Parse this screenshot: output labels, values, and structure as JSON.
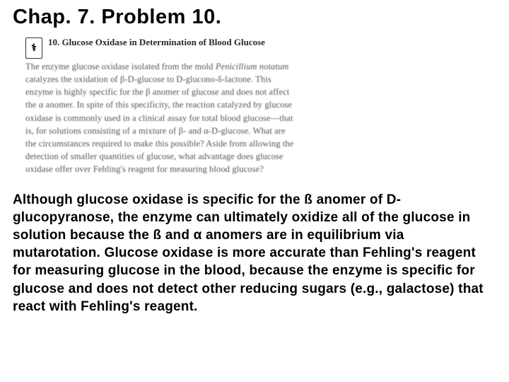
{
  "title": "Chap. 7. Problem 10.",
  "icon_glyph": "⚕",
  "problem": {
    "number_label": "10. Glucose Oxidase in Determination of Blood Glucose",
    "lead_in": "The enzyme glucose oxidase isolated from the mold ",
    "italic_species": "Penicillium notatum",
    "body_rest": " catalyzes the oxidation of β-D-glucose to D-glucono-δ-lactone. This enzyme is highly specific for the β anomer of glucose and does not affect the α anomer. In spite of this specificity, the reaction catalyzed by glucose oxidase is commonly used in a clinical assay for total blood glucose—that is, for solutions consisting of a mixture of β- and α-D-glucose. What are the circumstances required to make this possible? Aside from allowing the detection of smaller quantities of glucose, what advantage does glucose oxidase offer over Fehling's reagent for measuring blood glucose?"
  },
  "answer": "Although glucose oxidase is specific for the ß anomer of D-glucopyranose, the enzyme can ultimately oxidize all of the glucose in solution because the ß and α anomers are in equilibrium via mutarotation. Glucose oxidase is more accurate than Fehling's reagent for measuring glucose in the blood, because the enzyme is specific for glucose and does not detect other reducing sugars (e.g., galactose) that react with Fehling's reagent.",
  "colors": {
    "background": "#ffffff",
    "text": "#000000",
    "faded_text": "#555555"
  },
  "fonts": {
    "title_family": "Comic Sans MS",
    "title_size_pt": 22,
    "problem_family": "Georgia serif",
    "problem_size_pt": 9,
    "answer_family": "Comic Sans MS",
    "answer_size_pt": 14,
    "answer_weight": "bold"
  }
}
